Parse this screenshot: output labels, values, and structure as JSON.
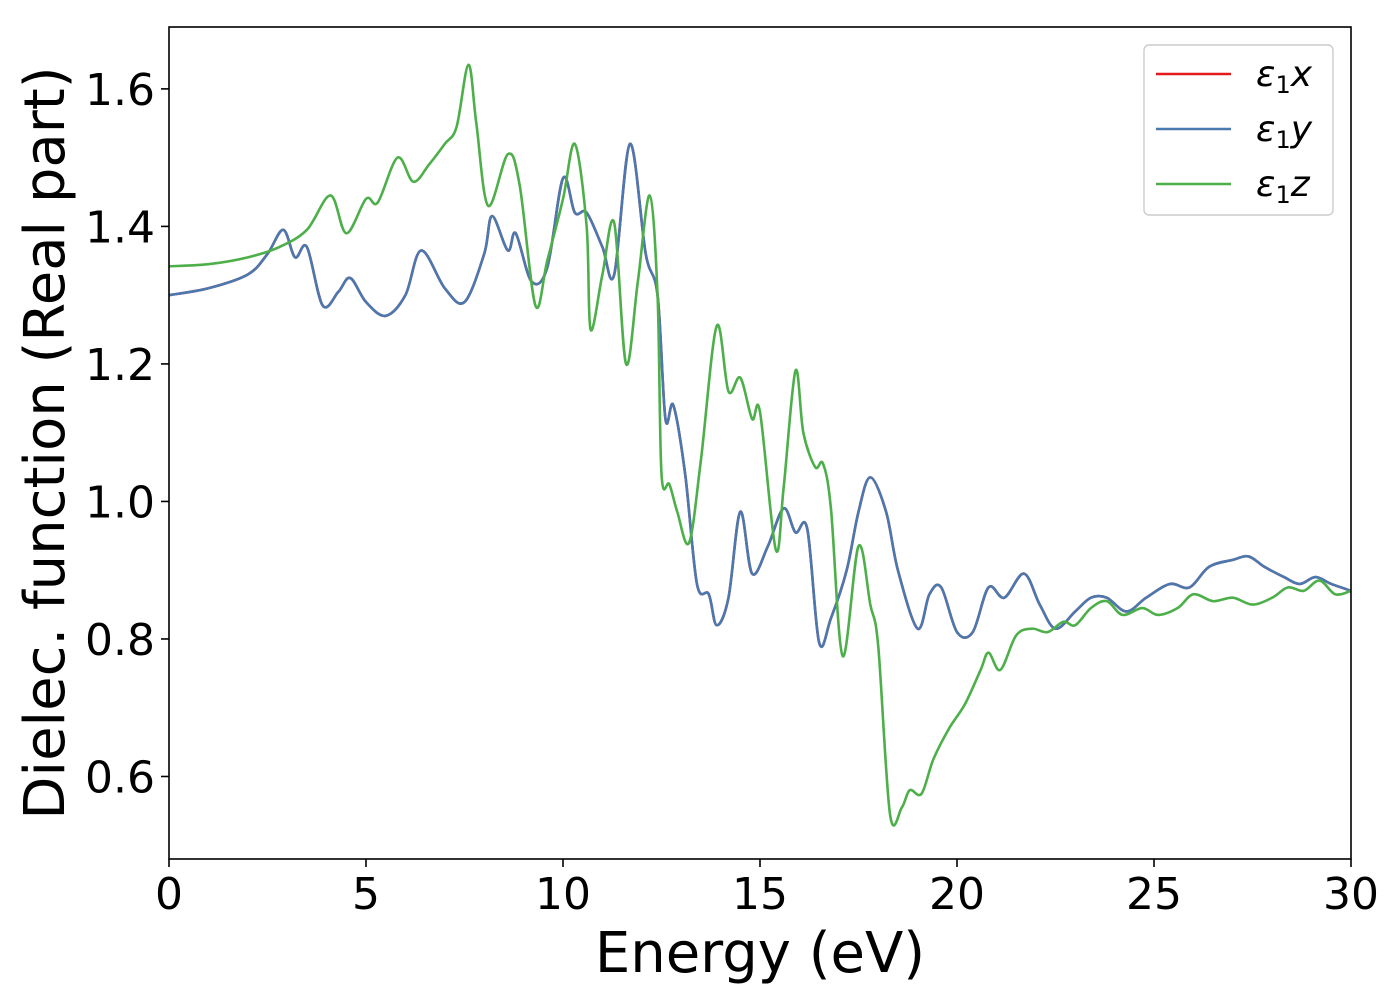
{
  "chart_data": {
    "type": "line",
    "xlabel": "Energy (eV)",
    "ylabel": "Dielec. function (Real part)",
    "xlim": [
      0,
      30
    ],
    "ylim": [
      0.48,
      1.69
    ],
    "xticks": [
      0,
      5,
      10,
      15,
      20,
      25,
      30
    ],
    "xtick_labels": [
      "0",
      "5",
      "10",
      "15",
      "20",
      "25",
      "30"
    ],
    "yticks": [
      0.6,
      0.8,
      1.0,
      1.2,
      1.4,
      1.6
    ],
    "ytick_labels": [
      "0.6",
      "0.8",
      "1.0",
      "1.2",
      "1.4",
      "1.6"
    ],
    "grid": false,
    "legend_position": "top-right",
    "series": [
      {
        "name": "ε1x",
        "legend": {
          "base": "ε",
          "sub": "1",
          "tail": "x"
        },
        "color": "#e41a1c",
        "x": [
          0,
          1,
          2,
          2.5,
          2.9,
          3.2,
          3.5,
          3.9,
          4.3,
          4.6,
          5.0,
          5.5,
          6.0,
          6.4,
          7.0,
          7.5,
          8.0,
          8.2,
          8.6,
          8.8,
          9.2,
          9.6,
          10.0,
          10.3,
          10.6,
          11.0,
          11.3,
          11.7,
          12.1,
          12.4,
          12.6,
          12.8,
          13.1,
          13.4,
          13.7,
          13.9,
          14.2,
          14.5,
          14.8,
          15.2,
          15.6,
          15.9,
          16.2,
          16.5,
          16.8,
          17.2,
          17.5,
          17.8,
          18.2,
          18.5,
          19.0,
          19.3,
          19.6,
          20.0,
          20.4,
          20.8,
          21.2,
          21.7,
          22.1,
          22.5,
          23.0,
          23.4,
          23.8,
          24.3,
          24.8,
          25.4,
          25.9,
          26.4,
          27.0,
          27.4,
          27.8,
          28.3,
          28.7,
          29.1,
          29.5,
          30.0
        ],
        "y": [
          1.3,
          1.31,
          1.33,
          1.36,
          1.395,
          1.355,
          1.37,
          1.285,
          1.305,
          1.325,
          1.29,
          1.27,
          1.3,
          1.365,
          1.31,
          1.29,
          1.36,
          1.415,
          1.365,
          1.39,
          1.32,
          1.34,
          1.47,
          1.42,
          1.42,
          1.37,
          1.33,
          1.52,
          1.36,
          1.3,
          1.12,
          1.14,
          1.04,
          0.88,
          0.865,
          0.82,
          0.86,
          0.985,
          0.895,
          0.935,
          0.99,
          0.955,
          0.96,
          0.795,
          0.83,
          0.9,
          0.985,
          1.035,
          0.985,
          0.9,
          0.815,
          0.865,
          0.875,
          0.81,
          0.81,
          0.875,
          0.86,
          0.895,
          0.85,
          0.815,
          0.84,
          0.86,
          0.86,
          0.84,
          0.86,
          0.88,
          0.875,
          0.905,
          0.915,
          0.92,
          0.905,
          0.89,
          0.88,
          0.89,
          0.88,
          0.87
        ]
      },
      {
        "name": "ε1y",
        "legend": {
          "base": "ε",
          "sub": "1",
          "tail": "y"
        },
        "color": "#4a79b0",
        "x": [
          0,
          1,
          2,
          2.5,
          2.9,
          3.2,
          3.5,
          3.9,
          4.3,
          4.6,
          5.0,
          5.5,
          6.0,
          6.4,
          7.0,
          7.5,
          8.0,
          8.2,
          8.6,
          8.8,
          9.2,
          9.6,
          10.0,
          10.3,
          10.6,
          11.0,
          11.3,
          11.7,
          12.1,
          12.4,
          12.6,
          12.8,
          13.1,
          13.4,
          13.7,
          13.9,
          14.2,
          14.5,
          14.8,
          15.2,
          15.6,
          15.9,
          16.2,
          16.5,
          16.8,
          17.2,
          17.5,
          17.8,
          18.2,
          18.5,
          19.0,
          19.3,
          19.6,
          20.0,
          20.4,
          20.8,
          21.2,
          21.7,
          22.1,
          22.5,
          23.0,
          23.4,
          23.8,
          24.3,
          24.8,
          25.4,
          25.9,
          26.4,
          27.0,
          27.4,
          27.8,
          28.3,
          28.7,
          29.1,
          29.5,
          30.0
        ],
        "y": [
          1.3,
          1.31,
          1.33,
          1.36,
          1.395,
          1.355,
          1.37,
          1.285,
          1.305,
          1.325,
          1.29,
          1.27,
          1.3,
          1.365,
          1.31,
          1.29,
          1.36,
          1.415,
          1.365,
          1.39,
          1.32,
          1.34,
          1.47,
          1.42,
          1.42,
          1.37,
          1.33,
          1.52,
          1.36,
          1.3,
          1.12,
          1.14,
          1.04,
          0.88,
          0.865,
          0.82,
          0.86,
          0.985,
          0.895,
          0.935,
          0.99,
          0.955,
          0.96,
          0.795,
          0.83,
          0.9,
          0.985,
          1.035,
          0.985,
          0.9,
          0.815,
          0.865,
          0.875,
          0.81,
          0.81,
          0.875,
          0.86,
          0.895,
          0.85,
          0.815,
          0.84,
          0.86,
          0.86,
          0.84,
          0.86,
          0.88,
          0.875,
          0.905,
          0.915,
          0.92,
          0.905,
          0.89,
          0.88,
          0.89,
          0.88,
          0.87
        ]
      },
      {
        "name": "ε1z",
        "legend": {
          "base": "ε",
          "sub": "1",
          "tail": "z"
        },
        "color": "#4daf4a",
        "x": [
          0,
          1,
          2,
          2.8,
          3.5,
          4.1,
          4.5,
          5.0,
          5.3,
          5.8,
          6.2,
          6.6,
          7.0,
          7.3,
          7.6,
          7.8,
          8.1,
          8.6,
          8.9,
          9.3,
          9.6,
          10.0,
          10.3,
          10.6,
          10.7,
          11.0,
          11.3,
          11.6,
          11.9,
          12.2,
          12.4,
          12.5,
          12.7,
          12.9,
          13.2,
          13.5,
          13.9,
          14.2,
          14.5,
          14.8,
          15.0,
          15.4,
          15.6,
          15.9,
          16.1,
          16.4,
          16.6,
          16.8,
          17.1,
          17.5,
          17.8,
          18.0,
          18.3,
          18.6,
          18.8,
          19.1,
          19.4,
          19.8,
          20.2,
          20.6,
          20.8,
          21.1,
          21.5,
          21.9,
          22.3,
          22.7,
          23.0,
          23.4,
          23.8,
          24.2,
          24.7,
          25.1,
          25.6,
          26.0,
          26.5,
          27.0,
          27.5,
          28.0,
          28.4,
          28.8,
          29.2,
          29.6,
          30.0
        ],
        "y": [
          1.342,
          1.345,
          1.355,
          1.37,
          1.395,
          1.445,
          1.39,
          1.44,
          1.435,
          1.5,
          1.465,
          1.49,
          1.52,
          1.545,
          1.635,
          1.55,
          1.43,
          1.505,
          1.46,
          1.285,
          1.35,
          1.44,
          1.52,
          1.4,
          1.25,
          1.33,
          1.405,
          1.2,
          1.32,
          1.445,
          1.3,
          1.04,
          1.025,
          0.985,
          0.94,
          1.06,
          1.255,
          1.16,
          1.18,
          1.12,
          1.13,
          0.93,
          1.02,
          1.19,
          1.1,
          1.05,
          1.055,
          0.99,
          0.775,
          0.935,
          0.85,
          0.79,
          0.545,
          0.555,
          0.58,
          0.575,
          0.625,
          0.67,
          0.705,
          0.755,
          0.78,
          0.755,
          0.805,
          0.815,
          0.81,
          0.825,
          0.82,
          0.845,
          0.855,
          0.835,
          0.845,
          0.835,
          0.845,
          0.865,
          0.855,
          0.86,
          0.85,
          0.86,
          0.875,
          0.87,
          0.885,
          0.865,
          0.87
        ]
      }
    ]
  }
}
